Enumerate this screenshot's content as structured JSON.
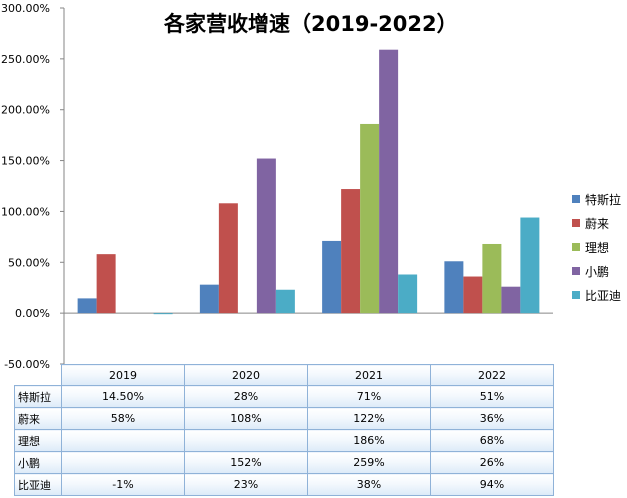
{
  "chart_data": {
    "type": "bar",
    "title": "各家营收增速（2019-2022）",
    "categories": [
      "2019",
      "2020",
      "2021",
      "2022"
    ],
    "ylim": [
      -50,
      300
    ],
    "yticks": [
      "-50.00%",
      "0.00%",
      "50.00%",
      "100.00%",
      "150.00%",
      "200.00%",
      "250.00%",
      "300.00%"
    ],
    "ytick_values": [
      -50,
      0,
      50,
      100,
      150,
      200,
      250,
      300
    ],
    "legend_position": "right",
    "series": [
      {
        "name": "特斯拉",
        "color": "#4f81bd",
        "values": [
          14.5,
          28,
          71,
          51
        ],
        "labels": [
          "14.50%",
          "28%",
          "71%",
          "51%"
        ]
      },
      {
        "name": "蔚来",
        "color": "#c0504d",
        "values": [
          58,
          108,
          122,
          36
        ],
        "labels": [
          "58%",
          "108%",
          "122%",
          "36%"
        ]
      },
      {
        "name": "理想",
        "color": "#9bbb59",
        "values": [
          null,
          null,
          186,
          68
        ],
        "labels": [
          "",
          "",
          "186%",
          "68%"
        ]
      },
      {
        "name": "小鹏",
        "color": "#8064a2",
        "values": [
          null,
          152,
          259,
          26
        ],
        "labels": [
          "",
          "152%",
          "259%",
          "26%"
        ]
      },
      {
        "name": "比亚迪",
        "color": "#4bacc6",
        "values": [
          -1,
          23,
          38,
          94
        ],
        "labels": [
          "-1%",
          "23%",
          "38%",
          "94%"
        ]
      }
    ]
  }
}
